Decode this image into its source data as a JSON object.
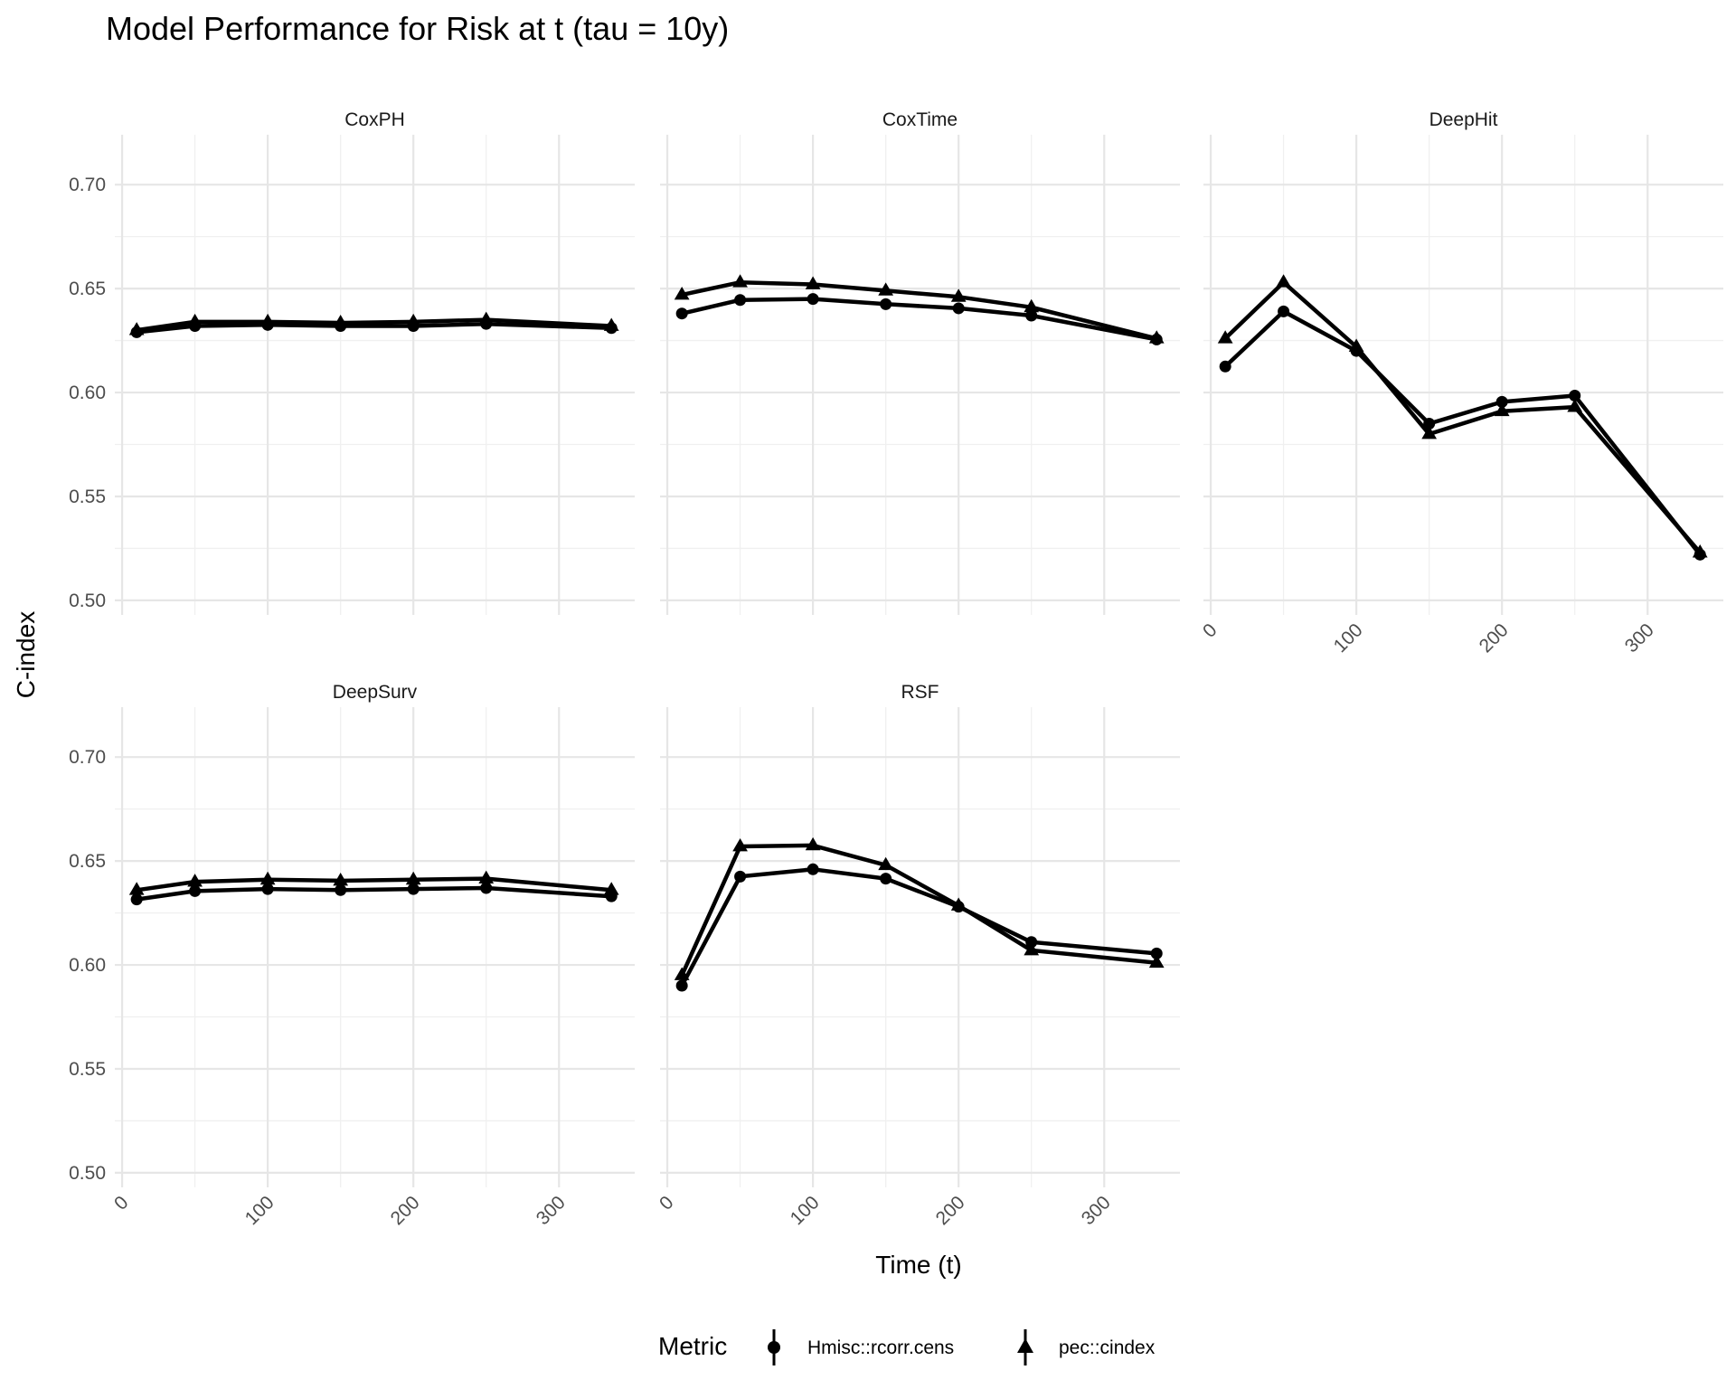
{
  "chart_data": {
    "type": "line",
    "title": "Model Performance for Risk at t (tau = 10y)",
    "xlabel": "Time (t)",
    "ylabel": "C-index",
    "x_ticks": [
      "0",
      "100",
      "200",
      "300"
    ],
    "y_ticks": [
      "0.50",
      "0.55",
      "0.60",
      "0.65",
      "0.70"
    ],
    "xlim": [
      -5,
      352
    ],
    "ylim": [
      0.493,
      0.724
    ],
    "grid": true,
    "legend": {
      "title": "Metric",
      "position": "bottom",
      "entries": [
        {
          "label": "Hmisc::rcorr.cens",
          "marker": "circle"
        },
        {
          "label": "pec::cindex",
          "marker": "triangle"
        }
      ]
    },
    "x": [
      10,
      50,
      100,
      150,
      200,
      250,
      336
    ],
    "panels": [
      {
        "name": "CoxPH",
        "series": [
          {
            "name": "Hmisc::rcorr.cens",
            "values": [
              0.629,
              0.632,
              0.6325,
              0.632,
              0.632,
              0.633,
              0.631
            ]
          },
          {
            "name": "pec::cindex",
            "values": [
              0.63,
              0.634,
              0.634,
              0.6335,
              0.634,
              0.635,
              0.632
            ]
          }
        ]
      },
      {
        "name": "CoxTime",
        "series": [
          {
            "name": "Hmisc::rcorr.cens",
            "values": [
              0.638,
              0.6445,
              0.645,
              0.6425,
              0.6405,
              0.637,
              0.6255
            ]
          },
          {
            "name": "pec::cindex",
            "values": [
              0.647,
              0.653,
              0.652,
              0.649,
              0.646,
              0.641,
              0.626
            ]
          }
        ]
      },
      {
        "name": "DeepHit",
        "series": [
          {
            "name": "Hmisc::rcorr.cens",
            "values": [
              0.6125,
              0.639,
              0.62,
              0.585,
              0.5955,
              0.5985,
              0.522
            ]
          },
          {
            "name": "pec::cindex",
            "values": [
              0.626,
              0.653,
              0.622,
              0.58,
              0.591,
              0.593,
              0.523
            ]
          }
        ]
      },
      {
        "name": "DeepSurv",
        "series": [
          {
            "name": "Hmisc::rcorr.cens",
            "values": [
              0.6315,
              0.6355,
              0.6365,
              0.636,
              0.6365,
              0.637,
              0.633
            ]
          },
          {
            "name": "pec::cindex",
            "values": [
              0.636,
              0.64,
              0.641,
              0.6405,
              0.641,
              0.6415,
              0.636
            ]
          }
        ]
      },
      {
        "name": "RSF",
        "series": [
          {
            "name": "Hmisc::rcorr.cens",
            "values": [
              0.59,
              0.6425,
              0.646,
              0.6415,
              0.628,
              0.611,
              0.6055
            ]
          },
          {
            "name": "pec::cindex",
            "values": [
              0.595,
              0.657,
              0.6575,
              0.648,
              0.6285,
              0.607,
              0.601
            ]
          }
        ]
      }
    ]
  }
}
